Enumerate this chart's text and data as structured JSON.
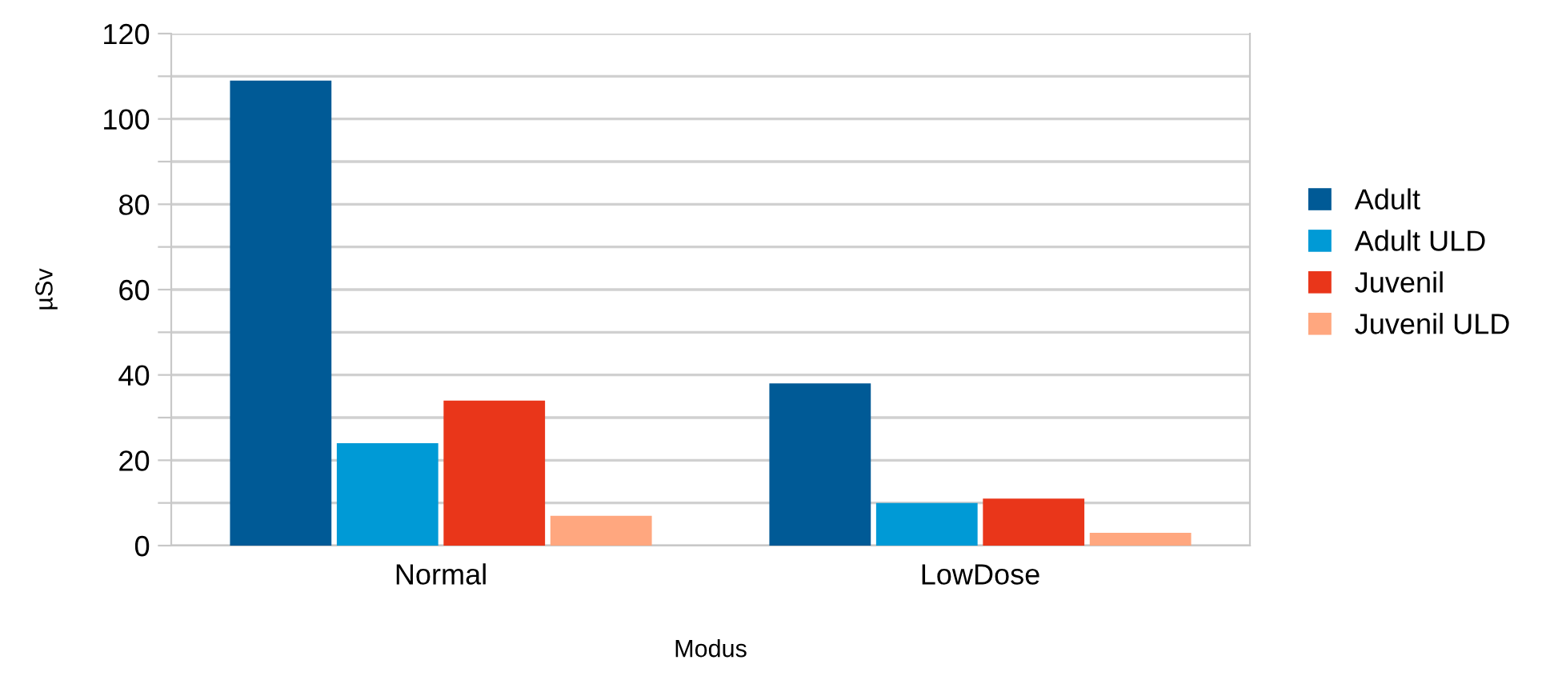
{
  "chart_data": {
    "type": "bar",
    "xlabel": "Modus",
    "ylabel": "µSv",
    "categories": [
      "Normal",
      "LowDose"
    ],
    "series": [
      {
        "name": "Adult",
        "color": "#005a96",
        "values": [
          109,
          38
        ]
      },
      {
        "name": "Adult ULD",
        "color": "#009ad6",
        "values": [
          24,
          10
        ]
      },
      {
        "name": "Juvenil",
        "color": "#e9361a",
        "values": [
          34,
          11
        ]
      },
      {
        "name": "Juvenil ULD",
        "color": "#ffa77f",
        "values": [
          7,
          3
        ]
      }
    ],
    "ylim": [
      0,
      120
    ],
    "yticks": [
      0,
      {
        "value": 10,
        "label": null
      },
      20,
      {
        "value": 30,
        "label": null
      },
      40,
      {
        "value": 50,
        "label": null
      },
      60,
      {
        "value": 70,
        "label": null
      },
      80,
      {
        "value": 90,
        "label": null
      },
      100,
      {
        "value": 110,
        "label": null
      },
      120
    ],
    "grid": "y",
    "legend": "right"
  }
}
